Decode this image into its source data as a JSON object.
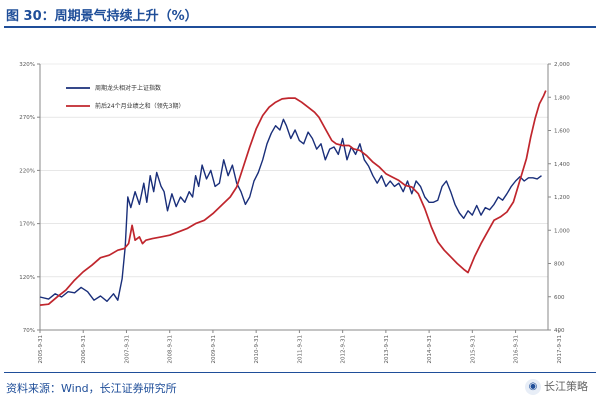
{
  "figure_title": "图 30：周期景气持续上升（%）",
  "source": "资料来源：Wind，长江证券研究所",
  "watermark": "长江策略",
  "colors": {
    "accent": "#1f4e99",
    "relative": "#1a2f7a",
    "profit": "#c0262d",
    "grid": "#d9d9d9",
    "axis": "#888888"
  },
  "chart_data": {
    "type": "line",
    "x_ticks": [
      "2005-9-31",
      "2006-9-31",
      "2007-9-31",
      "2008-9-31",
      "2009-9-31",
      "2010-9-31",
      "2011-9-31",
      "2012-9-31",
      "2013-9-31",
      "2014-9-31",
      "2015-9-31",
      "2016-9-31",
      "2017-9-31"
    ],
    "left_axis": {
      "ticks": [
        "320%",
        "270%",
        "220%",
        "170%",
        "120%",
        "70%"
      ],
      "ylim": [
        70,
        320
      ]
    },
    "right_axis": {
      "ticks": [
        "2,000",
        "1,800",
        "1,600",
        "1,400",
        "1,200",
        "1,000",
        "800",
        "600",
        "400"
      ],
      "ylim": [
        400,
        2000
      ]
    },
    "series": [
      {
        "name": "周期龙头相对于上证指数",
        "axis": "left",
        "points": [
          [
            2005.75,
            101
          ],
          [
            2005.95,
            99
          ],
          [
            2006.1,
            104
          ],
          [
            2006.25,
            101
          ],
          [
            2006.4,
            106
          ],
          [
            2006.55,
            105
          ],
          [
            2006.7,
            110
          ],
          [
            2006.85,
            106
          ],
          [
            2007.0,
            98
          ],
          [
            2007.15,
            102
          ],
          [
            2007.3,
            97
          ],
          [
            2007.45,
            104
          ],
          [
            2007.55,
            98
          ],
          [
            2007.65,
            118
          ],
          [
            2007.72,
            148
          ],
          [
            2007.78,
            195
          ],
          [
            2007.85,
            185
          ],
          [
            2007.95,
            200
          ],
          [
            2008.05,
            188
          ],
          [
            2008.15,
            208
          ],
          [
            2008.22,
            190
          ],
          [
            2008.3,
            215
          ],
          [
            2008.38,
            200
          ],
          [
            2008.45,
            218
          ],
          [
            2008.55,
            205
          ],
          [
            2008.62,
            200
          ],
          [
            2008.7,
            182
          ],
          [
            2008.8,
            198
          ],
          [
            2008.9,
            186
          ],
          [
            2009.0,
            195
          ],
          [
            2009.1,
            190
          ],
          [
            2009.2,
            200
          ],
          [
            2009.28,
            195
          ],
          [
            2009.35,
            215
          ],
          [
            2009.42,
            205
          ],
          [
            2009.5,
            225
          ],
          [
            2009.6,
            212
          ],
          [
            2009.7,
            220
          ],
          [
            2009.8,
            205
          ],
          [
            2009.9,
            208
          ],
          [
            2010.0,
            230
          ],
          [
            2010.1,
            215
          ],
          [
            2010.2,
            225
          ],
          [
            2010.3,
            208
          ],
          [
            2010.4,
            200
          ],
          [
            2010.5,
            188
          ],
          [
            2010.6,
            195
          ],
          [
            2010.7,
            210
          ],
          [
            2010.8,
            218
          ],
          [
            2010.9,
            230
          ],
          [
            2011.0,
            245
          ],
          [
            2011.1,
            255
          ],
          [
            2011.2,
            262
          ],
          [
            2011.3,
            258
          ],
          [
            2011.38,
            268
          ],
          [
            2011.45,
            262
          ],
          [
            2011.55,
            250
          ],
          [
            2011.65,
            258
          ],
          [
            2011.75,
            248
          ],
          [
            2011.85,
            245
          ],
          [
            2011.95,
            256
          ],
          [
            2012.05,
            250
          ],
          [
            2012.15,
            240
          ],
          [
            2012.25,
            245
          ],
          [
            2012.35,
            230
          ],
          [
            2012.45,
            240
          ],
          [
            2012.55,
            242
          ],
          [
            2012.65,
            235
          ],
          [
            2012.75,
            250
          ],
          [
            2012.85,
            230
          ],
          [
            2012.95,
            242
          ],
          [
            2013.05,
            235
          ],
          [
            2013.15,
            245
          ],
          [
            2013.25,
            230
          ],
          [
            2013.35,
            224
          ],
          [
            2013.45,
            215
          ],
          [
            2013.55,
            208
          ],
          [
            2013.65,
            215
          ],
          [
            2013.75,
            205
          ],
          [
            2013.85,
            210
          ],
          [
            2013.95,
            205
          ],
          [
            2014.05,
            208
          ],
          [
            2014.15,
            200
          ],
          [
            2014.25,
            210
          ],
          [
            2014.35,
            198
          ],
          [
            2014.45,
            210
          ],
          [
            2014.55,
            205
          ],
          [
            2014.65,
            195
          ],
          [
            2014.75,
            190
          ],
          [
            2014.85,
            190
          ],
          [
            2014.95,
            192
          ],
          [
            2015.05,
            205
          ],
          [
            2015.15,
            210
          ],
          [
            2015.25,
            200
          ],
          [
            2015.35,
            188
          ],
          [
            2015.45,
            180
          ],
          [
            2015.55,
            175
          ],
          [
            2015.65,
            182
          ],
          [
            2015.75,
            178
          ],
          [
            2015.85,
            187
          ],
          [
            2015.95,
            178
          ],
          [
            2016.05,
            185
          ],
          [
            2016.15,
            183
          ],
          [
            2016.25,
            188
          ],
          [
            2016.35,
            195
          ],
          [
            2016.45,
            192
          ],
          [
            2016.55,
            198
          ],
          [
            2016.65,
            205
          ],
          [
            2016.75,
            210
          ],
          [
            2016.85,
            214
          ],
          [
            2016.95,
            210
          ],
          [
            2017.05,
            213
          ],
          [
            2017.15,
            213
          ],
          [
            2017.25,
            212
          ],
          [
            2017.35,
            215
          ]
        ]
      },
      {
        "name": "前后24个月业绩之和（领先3期）",
        "axis": "right",
        "points": [
          [
            2005.75,
            550
          ],
          [
            2005.95,
            555
          ],
          [
            2006.15,
            600
          ],
          [
            2006.35,
            640
          ],
          [
            2006.55,
            700
          ],
          [
            2006.75,
            750
          ],
          [
            2006.95,
            790
          ],
          [
            2007.15,
            835
          ],
          [
            2007.35,
            850
          ],
          [
            2007.55,
            880
          ],
          [
            2007.7,
            890
          ],
          [
            2007.8,
            920
          ],
          [
            2007.88,
            1030
          ],
          [
            2007.95,
            940
          ],
          [
            2008.05,
            960
          ],
          [
            2008.12,
            920
          ],
          [
            2008.2,
            940
          ],
          [
            2008.35,
            950
          ],
          [
            2008.55,
            960
          ],
          [
            2008.75,
            970
          ],
          [
            2008.95,
            990
          ],
          [
            2009.15,
            1010
          ],
          [
            2009.35,
            1040
          ],
          [
            2009.55,
            1060
          ],
          [
            2009.75,
            1100
          ],
          [
            2009.95,
            1150
          ],
          [
            2010.15,
            1200
          ],
          [
            2010.3,
            1260
          ],
          [
            2010.45,
            1380
          ],
          [
            2010.6,
            1500
          ],
          [
            2010.75,
            1610
          ],
          [
            2010.9,
            1690
          ],
          [
            2011.05,
            1740
          ],
          [
            2011.2,
            1770
          ],
          [
            2011.35,
            1790
          ],
          [
            2011.5,
            1795
          ],
          [
            2011.65,
            1795
          ],
          [
            2011.8,
            1770
          ],
          [
            2011.95,
            1740
          ],
          [
            2012.1,
            1710
          ],
          [
            2012.2,
            1680
          ],
          [
            2012.35,
            1610
          ],
          [
            2012.5,
            1540
          ],
          [
            2012.6,
            1520
          ],
          [
            2012.75,
            1510
          ],
          [
            2012.9,
            1510
          ],
          [
            2013.0,
            1490
          ],
          [
            2013.15,
            1480
          ],
          [
            2013.3,
            1450
          ],
          [
            2013.45,
            1410
          ],
          [
            2013.6,
            1380
          ],
          [
            2013.75,
            1340
          ],
          [
            2013.9,
            1320
          ],
          [
            2014.05,
            1300
          ],
          [
            2014.2,
            1270
          ],
          [
            2014.35,
            1260
          ],
          [
            2014.5,
            1220
          ],
          [
            2014.65,
            1130
          ],
          [
            2014.8,
            1020
          ],
          [
            2014.95,
            930
          ],
          [
            2015.1,
            880
          ],
          [
            2015.25,
            840
          ],
          [
            2015.4,
            800
          ],
          [
            2015.55,
            765
          ],
          [
            2015.65,
            745
          ],
          [
            2015.8,
            840
          ],
          [
            2015.95,
            920
          ],
          [
            2016.1,
            990
          ],
          [
            2016.25,
            1060
          ],
          [
            2016.4,
            1080
          ],
          [
            2016.55,
            1110
          ],
          [
            2016.7,
            1170
          ],
          [
            2016.85,
            1300
          ],
          [
            2017.0,
            1430
          ],
          [
            2017.1,
            1560
          ],
          [
            2017.2,
            1670
          ],
          [
            2017.3,
            1760
          ],
          [
            2017.4,
            1810
          ],
          [
            2017.45,
            1840
          ]
        ]
      }
    ],
    "legend_position": "top-left",
    "grid": true
  }
}
